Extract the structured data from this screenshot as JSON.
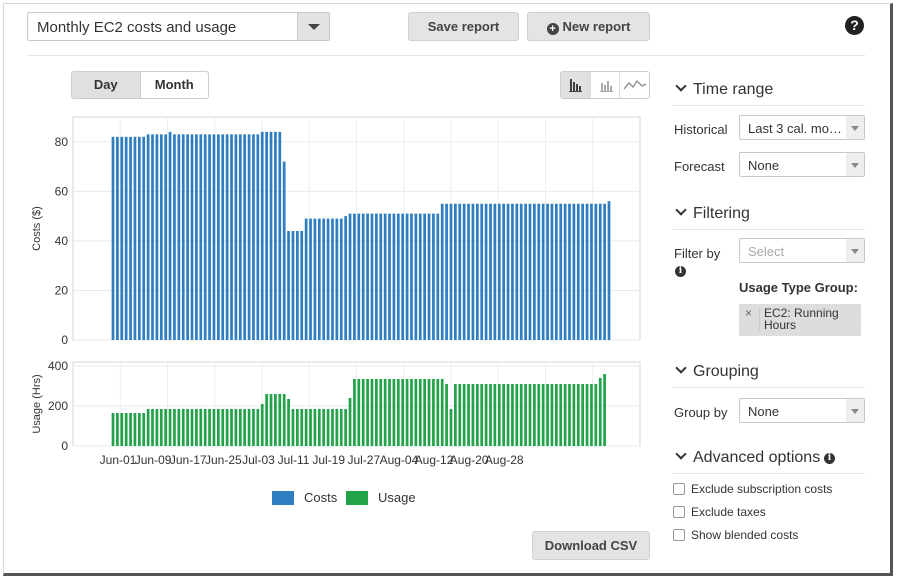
{
  "header": {
    "report_name": "Monthly EC2 costs and usage",
    "save_label": "Save report",
    "new_label": "New report",
    "help_glyph": "?"
  },
  "toggle": {
    "day": "Day",
    "month": "Month",
    "selected": "Day"
  },
  "chart_types": [
    "bar-chart-icon",
    "stacked-bar-icon",
    "line-chart-icon"
  ],
  "panel": {
    "time_range": {
      "heading": "Time range",
      "historical_label": "Historical",
      "historical_value": "Last 3 cal. mo…",
      "forecast_label": "Forecast",
      "forecast_value": "None"
    },
    "filtering": {
      "heading": "Filtering",
      "filter_by_label": "Filter by",
      "filter_placeholder": "Select",
      "group_title": "Usage Type Group:",
      "tag_text": "EC2: Running Hours"
    },
    "grouping": {
      "heading": "Grouping",
      "group_by_label": "Group by",
      "group_by_value": "None"
    },
    "advanced": {
      "heading": "Advanced options",
      "options": [
        "Exclude subscription costs",
        "Exclude taxes",
        "Show blended costs"
      ]
    }
  },
  "download_label": "Download CSV",
  "colors": {
    "costs": "#2f7ec1",
    "usage": "#22a34a"
  },
  "chart_data": [
    {
      "type": "bar",
      "ylabel": "Costs ($)",
      "ylim": [
        0,
        90
      ],
      "yticks": [
        0,
        20,
        40,
        60,
        80
      ],
      "grid": true,
      "series": [
        {
          "name": "Costs",
          "values": [
            82,
            82,
            82,
            82,
            82,
            82,
            82,
            82,
            83,
            83,
            83,
            83,
            83,
            84,
            83,
            83,
            83,
            83,
            83,
            83,
            83,
            83,
            83,
            83,
            83,
            83,
            83,
            83,
            83,
            83,
            83,
            83,
            83,
            83,
            84,
            84,
            84,
            84,
            84,
            72,
            44,
            44,
            44,
            44,
            49,
            49,
            49,
            49,
            49,
            49,
            49,
            49,
            49,
            50,
            51,
            51,
            51,
            51,
            51,
            51,
            51,
            51,
            51,
            51,
            51,
            51,
            51,
            51,
            51,
            51,
            51,
            51,
            51,
            51,
            51,
            55,
            55,
            55,
            55,
            55,
            55,
            55,
            55,
            55,
            55,
            55,
            55,
            55,
            55,
            55,
            55,
            55,
            55,
            55,
            55,
            55,
            55,
            55,
            55,
            55,
            55,
            55,
            55,
            55,
            55,
            55,
            55,
            55,
            55,
            55,
            55,
            55,
            55,
            56
          ]
        }
      ]
    },
    {
      "type": "bar",
      "ylabel": "Usage (Hrs)",
      "ylim": [
        0,
        420
      ],
      "yticks": [
        0,
        200,
        400
      ],
      "grid": true,
      "x_ticks": [
        "Jun-01",
        "Jun-09",
        "Jun-17",
        "Jun-25",
        "Jul-03",
        "Jul-11",
        "Jul-19",
        "Jul-27",
        "Aug-04",
        "Aug-12",
        "Aug-20",
        "Aug-28"
      ],
      "series": [
        {
          "name": "Usage",
          "values": [
            165,
            165,
            165,
            165,
            165,
            165,
            165,
            165,
            185,
            185,
            185,
            185,
            185,
            185,
            185,
            185,
            185,
            185,
            185,
            185,
            185,
            185,
            185,
            185,
            185,
            185,
            185,
            185,
            185,
            185,
            185,
            185,
            185,
            185,
            210,
            260,
            260,
            260,
            260,
            260,
            235,
            185,
            185,
            185,
            185,
            185,
            185,
            185,
            185,
            185,
            185,
            185,
            185,
            185,
            240,
            335,
            335,
            335,
            335,
            335,
            335,
            335,
            335,
            335,
            335,
            335,
            335,
            335,
            335,
            335,
            335,
            335,
            335,
            335,
            335,
            335,
            310,
            185,
            310,
            310,
            310,
            310,
            310,
            310,
            310,
            310,
            310,
            310,
            310,
            310,
            310,
            310,
            310,
            310,
            310,
            310,
            310,
            310,
            310,
            310,
            310,
            310,
            310,
            310,
            310,
            310,
            310,
            310,
            310,
            310,
            310,
            340,
            360
          ]
        }
      ]
    }
  ]
}
